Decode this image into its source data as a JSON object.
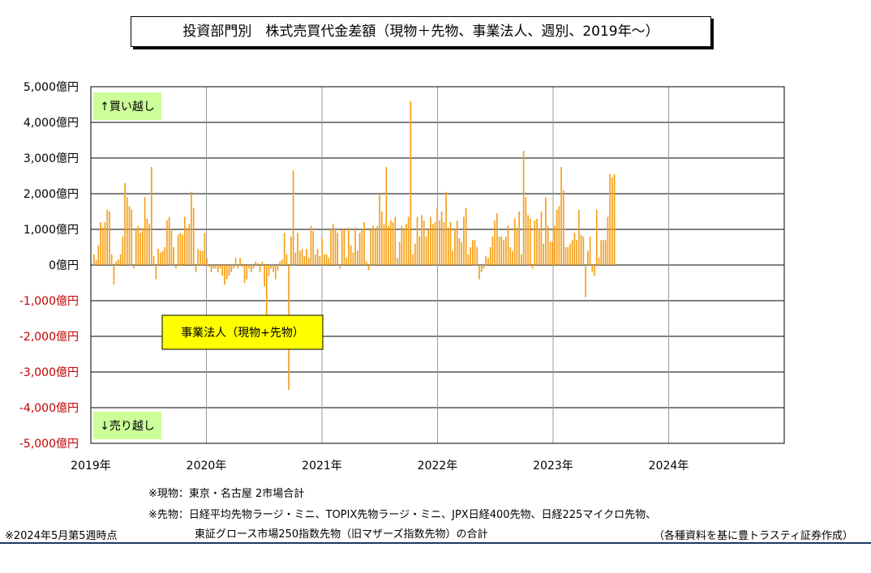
{
  "title": "投資部門別　株式売買代金差額（現物＋先物、事業法人、週別、2019年～）",
  "chart_data": {
    "type": "bar",
    "title": "投資部門別　株式売買代金差額（現物＋先物、事業法人、週別、2019年～）",
    "xlabel": "",
    "ylabel": "",
    "series_label": "事業法人（現物+先物）",
    "y_unit": "億円",
    "ylim": [
      -5000,
      5000
    ],
    "yticks": [
      "5,000億円",
      "4,000億円",
      "3,000億円",
      "2,000億円",
      "1,000億円",
      "0億円",
      "-1,000億円",
      "-2,000億円",
      "-3,000億円",
      "-4,000億円",
      "-5,000億円"
    ],
    "ytick_values": [
      5000,
      4000,
      3000,
      2000,
      1000,
      0,
      -1000,
      -2000,
      -3000,
      -4000,
      -5000
    ],
    "x_start": "2019-01",
    "x_end": "2024-12",
    "xticks": [
      "2019年",
      "2020年",
      "2021年",
      "2022年",
      "2023年",
      "2024年"
    ],
    "buy_label": "↑買い越し",
    "sell_label": "↓売り越し",
    "grid": true,
    "bar_color": "#f5a01a",
    "positive_tick_color": "#000000",
    "negative_tick_color": "#c00000",
    "annotation_bg": "#ccff99",
    "legend_bg": "#ffff00",
    "values": [
      300,
      150,
      550,
      1200,
      1050,
      1200,
      1550,
      1500,
      300,
      -550,
      100,
      150,
      300,
      800,
      2300,
      1900,
      1650,
      1550,
      -100,
      1000,
      1100,
      900,
      1000,
      1900,
      1300,
      1150,
      2750,
      250,
      -400,
      450,
      350,
      400,
      500,
      1250,
      1350,
      1000,
      500,
      -100,
      850,
      900,
      850,
      1350,
      1000,
      1150,
      2050,
      1600,
      -200,
      450,
      400,
      400,
      900,
      200,
      -50,
      -200,
      -100,
      -100,
      -200,
      -100,
      -300,
      -550,
      -400,
      -300,
      -200,
      -100,
      200,
      -100,
      200,
      -50,
      -500,
      -400,
      -100,
      -200,
      -100,
      100,
      50,
      -200,
      100,
      -600,
      -1400,
      -300,
      -100,
      -200,
      -400,
      -150,
      100,
      150,
      900,
      300,
      -3500,
      800,
      2650,
      350,
      900,
      400,
      450,
      250,
      450,
      200,
      1100,
      950,
      300,
      450,
      250,
      750,
      300,
      300,
      200,
      1000,
      1150,
      1000,
      900,
      -100,
      1000,
      1000,
      200,
      1050,
      550,
      350,
      1050,
      400,
      900,
      1000,
      1200,
      100,
      -150,
      1000,
      1100,
      1000,
      1100,
      2000,
      1500,
      1150,
      2750,
      1100,
      1250,
      1200,
      1350,
      200,
      650,
      1100,
      1000,
      1150,
      1350,
      4600,
      300,
      600,
      1350,
      800,
      1400,
      1250,
      800,
      1000,
      1350,
      1150,
      1200,
      1600,
      1250,
      1500,
      1200,
      2050,
      1050,
      1200,
      400,
      1000,
      1250,
      750,
      650,
      1350,
      1600,
      300,
      500,
      700,
      700,
      500,
      -400,
      -200,
      -100,
      250,
      200,
      500,
      800,
      1250,
      1450,
      800,
      800,
      700,
      800,
      1100,
      500,
      400,
      1300,
      1050,
      1500,
      300,
      3200,
      1900,
      1400,
      1300,
      -100,
      1250,
      1300,
      1000,
      1500,
      600,
      1900,
      1100,
      650,
      650,
      1100,
      1550,
      1650,
      2750,
      2100,
      500,
      500,
      600,
      700,
      900,
      700,
      1550,
      850,
      800,
      -900,
      400,
      800,
      -200,
      -300,
      1550,
      200,
      700,
      700,
      700,
      1350,
      2550,
      2450,
      2550
    ]
  },
  "notes": {
    "spot": "※現物：東京・名古屋 2市場合計",
    "futures_line1": "※先物：日経平均先物ラージ・ミニ、TOPIX先物ラージ・ミニ、JPX日経400先物、日経225マイクロ先物、",
    "futures_line2": "東証グロース市場250指数先物（旧マザーズ指数先物）の合計",
    "as_of": "※2024年5月第5週時点",
    "source": "（各種資料を基に豊トラスティ証券作成）"
  }
}
